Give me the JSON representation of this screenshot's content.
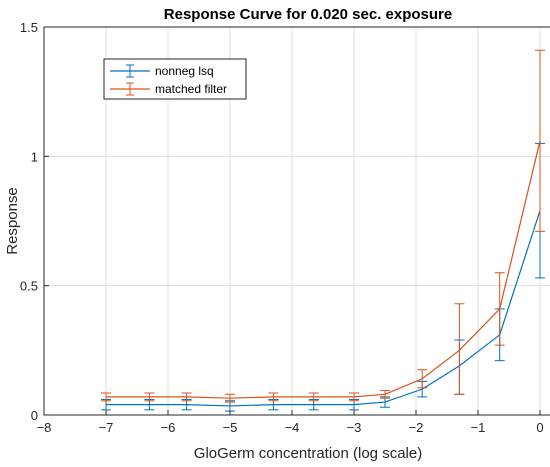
{
  "chart_data": {
    "type": "line",
    "title": "Response Curve for 0.020 sec. exposure",
    "xlabel": "GloGerm concentration (log scale)",
    "ylabel": "Response",
    "xlim": [
      -8,
      0.5
    ],
    "ylim": [
      0,
      1.5
    ],
    "xticks": [
      -8,
      -7,
      -6,
      -5,
      -4,
      -3,
      -2,
      -1,
      0
    ],
    "yticks": [
      0,
      0.5,
      1,
      1.5
    ],
    "xtick_labels": [
      "−8",
      "−7",
      "−6",
      "−5",
      "−4",
      "−3",
      "−2",
      "−1",
      "0"
    ],
    "ytick_labels": [
      "0",
      "0.5",
      "1",
      "1.5"
    ],
    "grid": true,
    "legend_position": "top-left",
    "x": [
      -7,
      -6.3,
      -5.7,
      -5,
      -4.3,
      -3.65,
      -3,
      -2.5,
      -1.9,
      -1.3,
      -0.65,
      0
    ],
    "series": [
      {
        "name": "nonneg lsq",
        "color": "#0072BD",
        "values": [
          0.04,
          0.04,
          0.04,
          0.035,
          0.04,
          0.04,
          0.04,
          0.05,
          0.1,
          0.19,
          0.31,
          0.79
        ],
        "err_low": [
          0.02,
          0.02,
          0.02,
          0.02,
          0.02,
          0.02,
          0.02,
          0.02,
          0.03,
          0.11,
          0.1,
          0.26
        ],
        "err_high": [
          0.02,
          0.02,
          0.02,
          0.02,
          0.02,
          0.02,
          0.02,
          0.02,
          0.03,
          0.1,
          0.1,
          0.26
        ]
      },
      {
        "name": "matched filter",
        "color": "#D95319",
        "values": [
          0.07,
          0.07,
          0.07,
          0.065,
          0.07,
          0.07,
          0.07,
          0.08,
          0.14,
          0.25,
          0.41,
          1.06
        ],
        "err_low": [
          0.015,
          0.015,
          0.015,
          0.015,
          0.015,
          0.015,
          0.015,
          0.015,
          0.035,
          0.17,
          0.14,
          0.35
        ],
        "err_high": [
          0.015,
          0.015,
          0.015,
          0.015,
          0.015,
          0.015,
          0.015,
          0.015,
          0.035,
          0.18,
          0.14,
          0.35
        ]
      }
    ]
  }
}
